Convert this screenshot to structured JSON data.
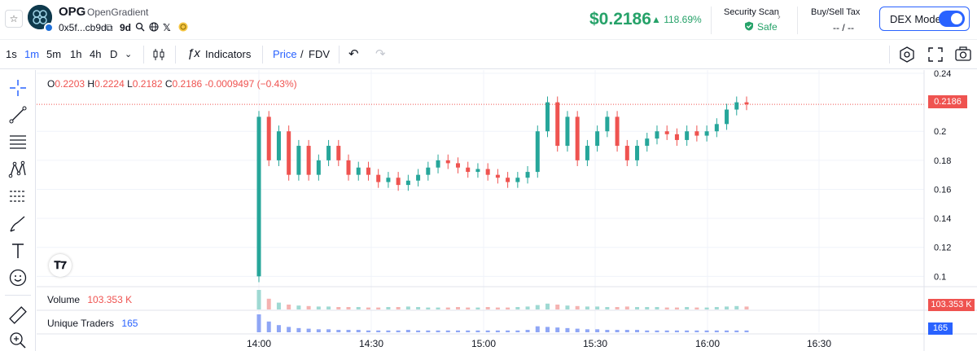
{
  "header": {
    "star_icon": "star-icon",
    "ticker": "OPG",
    "token_name": "OpenGradient",
    "address": "0x5f...cb9d",
    "age": "9d",
    "price": "$0.2186",
    "price_change": "▲ 118.69%",
    "security_label": "Security Scan",
    "security_status": "Safe",
    "tax_label": "Buy/Sell Tax",
    "tax_value": "-- / --",
    "dex_label": "DEX Mode",
    "colors": {
      "green": "#26a269",
      "accent": "#2962ff"
    }
  },
  "toolbar": {
    "timeframes": [
      "1s",
      "1m",
      "5m",
      "1h",
      "4h",
      "D"
    ],
    "active_timeframe": "1m",
    "indicators_label": "Indicators",
    "price_label": "Price",
    "slash": "/",
    "fdv_label": "FDV"
  },
  "ohlc": {
    "o_label": "O",
    "o": "0.2203",
    "h_label": "H",
    "h": "0.2224",
    "l_label": "L",
    "l": "0.2182",
    "c_label": "C",
    "c": "0.2186",
    "change": "-0.0009497 (−0.43%)"
  },
  "volume_pane": {
    "label": "Volume",
    "value": "103.353 K",
    "badge": "103.353 K"
  },
  "traders_pane": {
    "label": "Unique Traders",
    "value": "165",
    "badge": "165"
  },
  "chart_data": {
    "type": "candlestick",
    "y_ticks": [
      "0.24",
      "0.2",
      "0.18",
      "0.16",
      "0.14",
      "0.12",
      "0.1"
    ],
    "y_tick_values": [
      0.24,
      0.2,
      0.18,
      0.16,
      0.14,
      0.12,
      0.1
    ],
    "x_ticks": [
      "14:00",
      "14:30",
      "15:00",
      "15:30",
      "16:00",
      "16:30"
    ],
    "last_price": "0.2186",
    "last_price_value": 0.2186,
    "ylim": [
      0.094,
      0.24
    ],
    "colors": {
      "up": "#26a69a",
      "down": "#ef5350",
      "traders": "#5b7ff0"
    },
    "price_path": [
      [
        0.1,
        0.21
      ],
      [
        0.21,
        0.18
      ],
      [
        0.18,
        0.2
      ],
      [
        0.2,
        0.17
      ],
      [
        0.17,
        0.19
      ],
      [
        0.19,
        0.17
      ],
      [
        0.17,
        0.18
      ],
      [
        0.18,
        0.19
      ],
      [
        0.19,
        0.18
      ],
      [
        0.18,
        0.17
      ],
      [
        0.17,
        0.175
      ],
      [
        0.175,
        0.17
      ],
      [
        0.17,
        0.165
      ],
      [
        0.165,
        0.168
      ],
      [
        0.168,
        0.163
      ],
      [
        0.163,
        0.166
      ],
      [
        0.166,
        0.17
      ],
      [
        0.17,
        0.175
      ],
      [
        0.175,
        0.18
      ],
      [
        0.18,
        0.178
      ],
      [
        0.178,
        0.175
      ],
      [
        0.175,
        0.172
      ],
      [
        0.172,
        0.174
      ],
      [
        0.174,
        0.17
      ],
      [
        0.17,
        0.168
      ],
      [
        0.168,
        0.165
      ],
      [
        0.165,
        0.168
      ],
      [
        0.168,
        0.172
      ],
      [
        0.172,
        0.2
      ],
      [
        0.2,
        0.22
      ],
      [
        0.22,
        0.19
      ],
      [
        0.19,
        0.21
      ],
      [
        0.21,
        0.18
      ],
      [
        0.18,
        0.19
      ],
      [
        0.19,
        0.2
      ],
      [
        0.2,
        0.21
      ],
      [
        0.21,
        0.19
      ],
      [
        0.19,
        0.18
      ],
      [
        0.18,
        0.19
      ],
      [
        0.19,
        0.195
      ],
      [
        0.195,
        0.2
      ],
      [
        0.2,
        0.198
      ],
      [
        0.198,
        0.194
      ],
      [
        0.194,
        0.2
      ],
      [
        0.2,
        0.197
      ],
      [
        0.197,
        0.2
      ],
      [
        0.2,
        0.205
      ],
      [
        0.205,
        0.215
      ],
      [
        0.215,
        0.22
      ],
      [
        0.22,
        0.2186
      ]
    ],
    "volume": [
      40,
      22,
      14,
      10,
      8,
      7,
      6,
      6,
      5,
      5,
      5,
      4,
      4,
      5,
      5,
      6,
      5,
      4,
      4,
      4,
      5,
      4,
      4,
      5,
      4,
      4,
      5,
      6,
      9,
      12,
      10,
      8,
      7,
      6,
      6,
      5,
      5,
      6,
      5,
      5,
      5,
      4,
      4,
      5,
      4,
      4,
      5,
      6,
      7,
      6
    ],
    "traders": [
      30,
      18,
      12,
      9,
      7,
      6,
      5,
      5,
      4,
      4,
      4,
      3,
      3,
      3,
      3,
      4,
      3,
      3,
      3,
      3,
      3,
      3,
      3,
      3,
      3,
      3,
      3,
      4,
      10,
      9,
      8,
      7,
      6,
      5,
      5,
      4,
      4,
      4,
      4,
      3,
      3,
      3,
      3,
      3,
      3,
      3,
      3,
      3,
      3,
      3
    ]
  }
}
